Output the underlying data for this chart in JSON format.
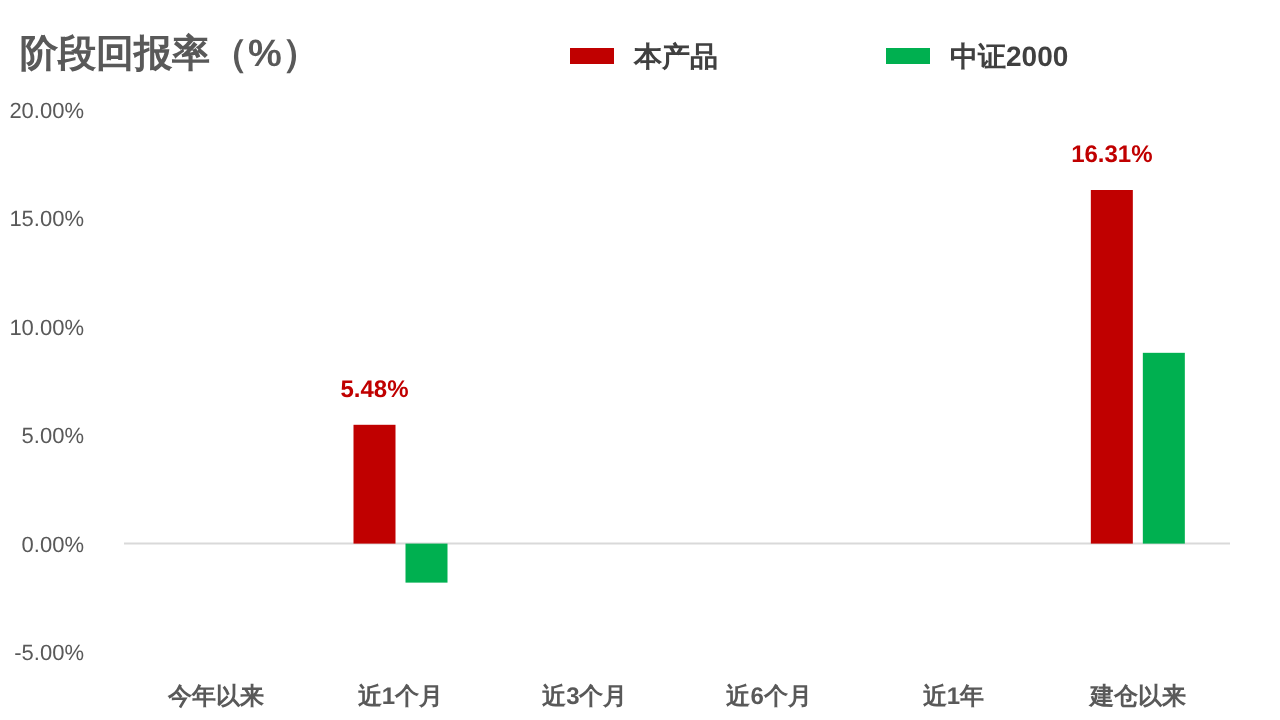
{
  "chart_data": {
    "type": "bar",
    "title": "阶段回报率（%）",
    "categories": [
      "今年以来",
      "近1个月",
      "近3个月",
      "近6个月",
      "近1年",
      "建仓以来"
    ],
    "series": [
      {
        "name": "本产品",
        "color": "#c00000",
        "values": [
          null,
          5.48,
          null,
          null,
          null,
          16.31
        ],
        "value_labels": [
          null,
          "5.48%",
          null,
          null,
          null,
          "16.31%"
        ]
      },
      {
        "name": "中证2000",
        "color": "#00b050",
        "values": [
          null,
          -1.8,
          null,
          null,
          null,
          8.8
        ]
      }
    ],
    "ylim": [
      -5,
      20
    ],
    "yticks": [
      {
        "value": -5,
        "label": "-5.00%"
      },
      {
        "value": 0,
        "label": "0.00%"
      },
      {
        "value": 5,
        "label": "5.00%"
      },
      {
        "value": 10,
        "label": "10.00%"
      },
      {
        "value": 15,
        "label": "15.00%"
      },
      {
        "value": 20,
        "label": "20.00%"
      }
    ],
    "legend": "top"
  }
}
